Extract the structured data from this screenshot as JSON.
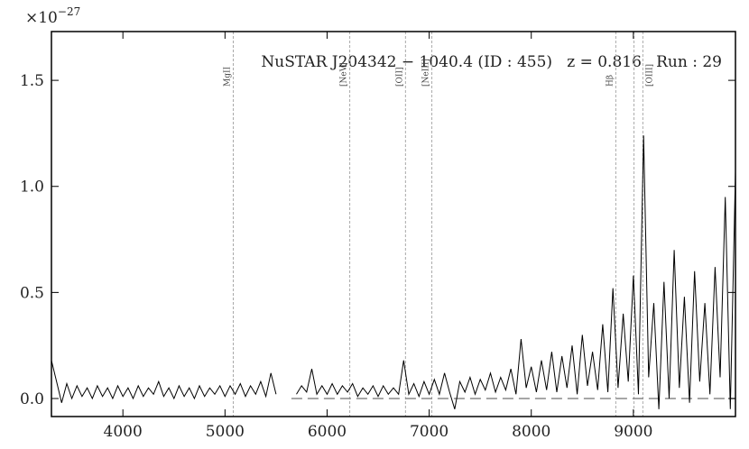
{
  "chart_data": {
    "type": "line",
    "title": "NuSTAR J204342 − 1040.4 (ID : 455)   z = 0.816   Run : 29",
    "offset_label": "×10",
    "offset_exponent": "−27",
    "xlim": [
      3300,
      10000
    ],
    "ylim": [
      -0.085,
      1.73
    ],
    "xticks": [
      4000,
      5000,
      6000,
      7000,
      8000,
      9000
    ],
    "yticks": [
      {
        "value": 0,
        "label": "0.0"
      },
      0.5,
      {
        "value": 1,
        "label": "1.0"
      },
      1.5
    ],
    "x": [
      3300,
      3350,
      3400,
      3450,
      3500,
      3550,
      3600,
      3650,
      3700,
      3750,
      3800,
      3850,
      3900,
      3950,
      4000,
      4050,
      4100,
      4150,
      4200,
      4250,
      4300,
      4350,
      4400,
      4450,
      4500,
      4550,
      4600,
      4650,
      4700,
      4750,
      4800,
      4850,
      4900,
      4950,
      5000,
      5050,
      5100,
      5150,
      5200,
      5250,
      5300,
      5350,
      5400,
      5450,
      5500,
      5550,
      5600,
      5650,
      5700,
      5750,
      5800,
      5850,
      5900,
      5950,
      6000,
      6050,
      6100,
      6150,
      6200,
      6250,
      6300,
      6350,
      6400,
      6450,
      6500,
      6550,
      6600,
      6650,
      6700,
      6750,
      6800,
      6850,
      6900,
      6950,
      7000,
      7050,
      7100,
      7150,
      7200,
      7250,
      7300,
      7350,
      7400,
      7450,
      7500,
      7550,
      7600,
      7650,
      7700,
      7750,
      7800,
      7850,
      7900,
      7950,
      8000,
      8050,
      8100,
      8150,
      8200,
      8250,
      8300,
      8350,
      8400,
      8450,
      8500,
      8550,
      8600,
      8650,
      8700,
      8750,
      8800,
      8850,
      8900,
      8950,
      9000,
      9050,
      9100,
      9150,
      9200,
      9250,
      9300,
      9350,
      9400,
      9450,
      9500,
      9550,
      9600,
      9650,
      9700,
      9750,
      9800,
      9850,
      9900,
      9950,
      10000
    ],
    "series": [
      {
        "color": "#000000",
        "values": [
          0.18,
          0.08,
          -0.02,
          0.07,
          0.0,
          0.06,
          0.01,
          0.05,
          0.0,
          0.06,
          0.01,
          0.05,
          0.0,
          0.06,
          0.01,
          0.05,
          0.0,
          0.06,
          0.01,
          0.05,
          0.02,
          0.08,
          0.01,
          0.05,
          0.0,
          0.06,
          0.01,
          0.05,
          0.0,
          0.06,
          0.01,
          0.05,
          0.02,
          0.06,
          0.01,
          0.06,
          0.02,
          0.07,
          0.01,
          0.06,
          0.02,
          0.08,
          0.01,
          0.12,
          0.02,
          null,
          null,
          null,
          0.02,
          0.06,
          0.03,
          0.14,
          0.02,
          0.06,
          0.02,
          0.07,
          0.02,
          0.06,
          0.03,
          0.07,
          0.01,
          0.05,
          0.02,
          0.06,
          0.01,
          0.06,
          0.02,
          0.05,
          0.02,
          0.18,
          0.02,
          0.07,
          0.01,
          0.08,
          0.02,
          0.09,
          0.02,
          0.12,
          0.03,
          -0.05,
          0.08,
          0.03,
          0.1,
          0.02,
          0.09,
          0.04,
          0.12,
          0.03,
          0.1,
          0.04,
          0.14,
          0.02,
          0.28,
          0.05,
          0.15,
          0.03,
          0.18,
          0.04,
          0.22,
          0.03,
          0.2,
          0.05,
          0.25,
          0.02,
          0.3,
          0.06,
          0.22,
          0.04,
          0.35,
          0.03,
          0.52,
          0.05,
          0.4,
          0.08,
          0.58,
          0.02,
          1.24,
          0.1,
          0.45,
          -0.05,
          0.55,
          0.0,
          0.7,
          0.05,
          0.48,
          -0.02,
          0.6,
          0.08,
          0.45,
          0.02,
          0.62,
          0.1,
          0.95,
          -0.05,
          1.07
        ]
      }
    ],
    "reference": {
      "color": "#888888",
      "x": [
        5650,
        10000
      ],
      "values": [
        0,
        0
      ]
    },
    "lines": {
      "color": "#aaaaaa",
      "x": [
        5081,
        6222,
        6768,
        7026,
        8828,
        9006,
        9093
      ],
      "labels": [
        "MgII",
        "[NeV]",
        "[OII]",
        "[NeIII]",
        "Hβ",
        null,
        "[OIII]"
      ]
    }
  }
}
